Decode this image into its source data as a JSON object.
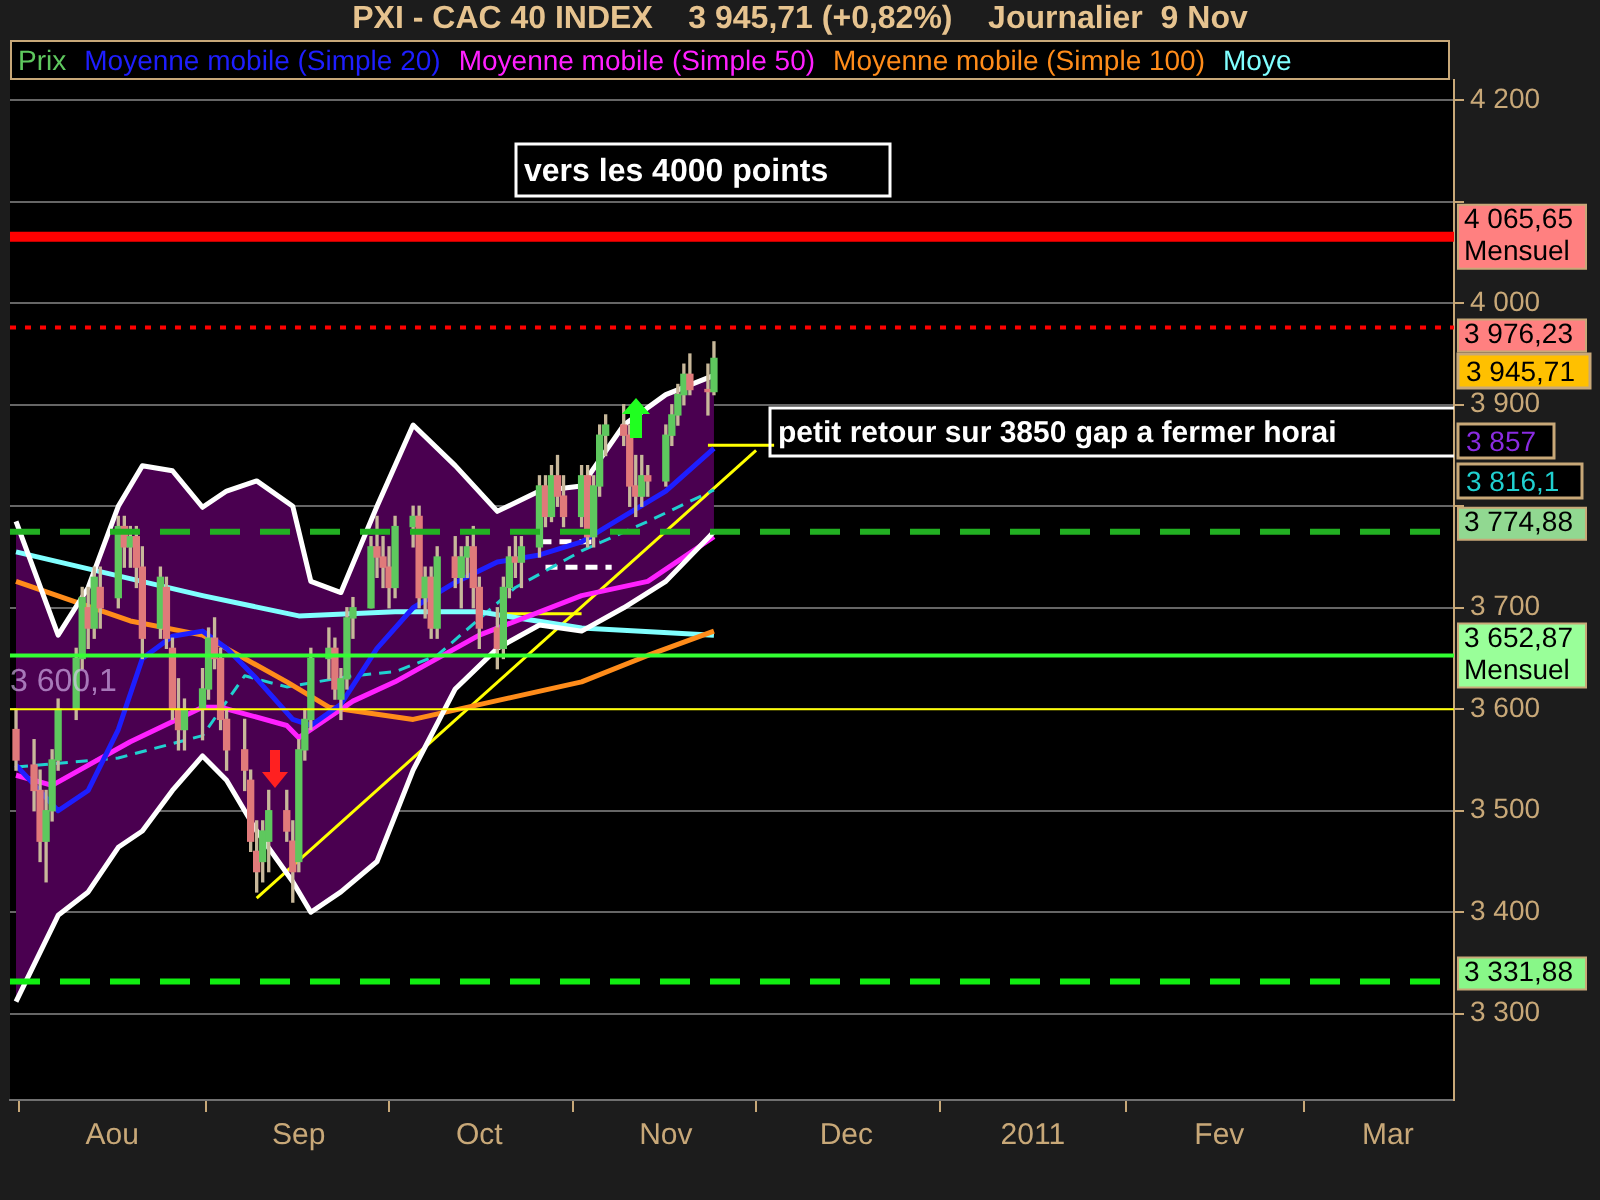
{
  "chart_data": {
    "type": "candlestick",
    "title": "PXI - CAC 40 INDEX    3 945,71 (+0,82%)    Journalier  9 Nov",
    "xlim": [
      "2010-07-15",
      "2011-03-12"
    ],
    "xticks": [
      {
        "value": "2010-08-01",
        "label": "Aou"
      },
      {
        "value": "2010-09-01",
        "label": "Sep"
      },
      {
        "value": "2010-10-01",
        "label": "Oct"
      },
      {
        "value": "2010-11-01",
        "label": "Nov"
      },
      {
        "value": "2010-12-01",
        "label": "Dec"
      },
      {
        "value": "2011-01-01",
        "label": "2011"
      },
      {
        "value": "2011-02-01",
        "label": "Fev"
      },
      {
        "value": "2011-03-01",
        "label": "Mar"
      }
    ],
    "ylim": [
      3215,
      4220
    ],
    "yticks": [
      {
        "value": 3300,
        "label": "3 300"
      },
      {
        "value": 3400,
        "label": "3 400"
      },
      {
        "value": 3500,
        "label": "3 500"
      },
      {
        "value": 3600,
        "label": "3 600"
      },
      {
        "value": 3700,
        "label": "3 700"
      },
      {
        "value": 3800,
        "label": null
      },
      {
        "value": 3900,
        "label": "3 900"
      },
      {
        "value": 4000,
        "label": "4 000"
      },
      {
        "value": 4100,
        "label": null
      },
      {
        "value": 4200,
        "label": "4 200"
      }
    ],
    "grid": "y",
    "legend": "top left",
    "series": [
      {
        "name": "Prix",
        "x": [
          "2010-07-16",
          "2010-07-19",
          "2010-07-20",
          "2010-07-21",
          "2010-07-22",
          "2010-07-23",
          "2010-07-26",
          "2010-07-27",
          "2010-07-28",
          "2010-07-29",
          "2010-07-30",
          "2010-08-02",
          "2010-08-03",
          "2010-08-04",
          "2010-08-05",
          "2010-08-06",
          "2010-08-09",
          "2010-08-10",
          "2010-08-11",
          "2010-08-12",
          "2010-08-13",
          "2010-08-16",
          "2010-08-17",
          "2010-08-18",
          "2010-08-19",
          "2010-08-20",
          "2010-08-23",
          "2010-08-24",
          "2010-08-25",
          "2010-08-26",
          "2010-08-27",
          "2010-08-30",
          "2010-08-31",
          "2010-09-01",
          "2010-09-02",
          "2010-09-03",
          "2010-09-06",
          "2010-09-07",
          "2010-09-08",
          "2010-09-09",
          "2010-09-10",
          "2010-09-13",
          "2010-09-14",
          "2010-09-15",
          "2010-09-16",
          "2010-09-17",
          "2010-09-20",
          "2010-09-21",
          "2010-09-22",
          "2010-09-23",
          "2010-09-24",
          "2010-09-27",
          "2010-09-28",
          "2010-09-29",
          "2010-09-30",
          "2010-10-01",
          "2010-10-04",
          "2010-10-05",
          "2010-10-06",
          "2010-10-07",
          "2010-10-08",
          "2010-10-11",
          "2010-10-12",
          "2010-10-13",
          "2010-10-14",
          "2010-10-15",
          "2010-10-18",
          "2010-10-19",
          "2010-10-20",
          "2010-10-21",
          "2010-10-22",
          "2010-10-25",
          "2010-10-26",
          "2010-10-27",
          "2010-10-28",
          "2010-10-29",
          "2010-11-01",
          "2010-11-02",
          "2010-11-03",
          "2010-11-04",
          "2010-11-05",
          "2010-11-08",
          "2010-11-09"
        ],
        "ohlc": [
          [
            3580,
            3600,
            3540,
            3550
          ],
          [
            3545,
            3570,
            3500,
            3520
          ],
          [
            3520,
            3540,
            3450,
            3470
          ],
          [
            3470,
            3520,
            3430,
            3500
          ],
          [
            3500,
            3560,
            3490,
            3550
          ],
          [
            3550,
            3610,
            3540,
            3600
          ],
          [
            3600,
            3660,
            3590,
            3650
          ],
          [
            3650,
            3720,
            3640,
            3710
          ],
          [
            3700,
            3720,
            3660,
            3680
          ],
          [
            3680,
            3740,
            3670,
            3730
          ],
          [
            3720,
            3740,
            3680,
            3700
          ],
          [
            3710,
            3790,
            3700,
            3780
          ],
          [
            3780,
            3790,
            3740,
            3760
          ],
          [
            3760,
            3780,
            3740,
            3770
          ],
          [
            3770,
            3780,
            3720,
            3740
          ],
          [
            3740,
            3760,
            3650,
            3670
          ],
          [
            3680,
            3740,
            3670,
            3730
          ],
          [
            3720,
            3730,
            3660,
            3670
          ],
          [
            3660,
            3670,
            3590,
            3600
          ],
          [
            3600,
            3630,
            3560,
            3580
          ],
          [
            3580,
            3610,
            3560,
            3600
          ],
          [
            3600,
            3640,
            3570,
            3620
          ],
          [
            3620,
            3680,
            3610,
            3670
          ],
          [
            3670,
            3690,
            3640,
            3650
          ],
          [
            3650,
            3660,
            3580,
            3590
          ],
          [
            3590,
            3600,
            3540,
            3560
          ],
          [
            3560,
            3590,
            3520,
            3540
          ],
          [
            3530,
            3540,
            3460,
            3470
          ],
          [
            3460,
            3490,
            3420,
            3440
          ],
          [
            3450,
            3490,
            3430,
            3480
          ],
          [
            3470,
            3520,
            3440,
            3500
          ],
          [
            3500,
            3520,
            3470,
            3480
          ],
          [
            3470,
            3490,
            3410,
            3440
          ],
          [
            3450,
            3570,
            3440,
            3560
          ],
          [
            3560,
            3600,
            3550,
            3590
          ],
          [
            3590,
            3660,
            3580,
            3650
          ],
          [
            3650,
            3680,
            3630,
            3660
          ],
          [
            3660,
            3670,
            3610,
            3620
          ],
          [
            3610,
            3640,
            3590,
            3630
          ],
          [
            3630,
            3700,
            3620,
            3690
          ],
          [
            3690,
            3710,
            3670,
            3700
          ],
          [
            3700,
            3770,
            3700,
            3760
          ],
          [
            3760,
            3790,
            3730,
            3750
          ],
          [
            3750,
            3770,
            3720,
            3740
          ],
          [
            3740,
            3760,
            3700,
            3720
          ],
          [
            3720,
            3790,
            3710,
            3780
          ],
          [
            3780,
            3800,
            3760,
            3790
          ],
          [
            3790,
            3800,
            3700,
            3710
          ],
          [
            3710,
            3740,
            3690,
            3730
          ],
          [
            3730,
            3740,
            3670,
            3680
          ],
          [
            3680,
            3760,
            3670,
            3750
          ],
          [
            3750,
            3770,
            3720,
            3730
          ],
          [
            3730,
            3760,
            3700,
            3750
          ],
          [
            3750,
            3770,
            3730,
            3760
          ],
          [
            3760,
            3780,
            3700,
            3720
          ],
          [
            3720,
            3730,
            3660,
            3680
          ],
          [
            3680,
            3700,
            3640,
            3660
          ],
          [
            3660,
            3730,
            3650,
            3720
          ],
          [
            3720,
            3760,
            3710,
            3750
          ],
          [
            3750,
            3770,
            3730,
            3745
          ],
          [
            3745,
            3770,
            3720,
            3760
          ],
          [
            3760,
            3830,
            3750,
            3820
          ],
          [
            3820,
            3830,
            3780,
            3790
          ],
          [
            3790,
            3840,
            3785,
            3830
          ],
          [
            3830,
            3850,
            3800,
            3810
          ],
          [
            3810,
            3830,
            3780,
            3790
          ],
          [
            3790,
            3840,
            3780,
            3830
          ],
          [
            3830,
            3840,
            3760,
            3770
          ],
          [
            3770,
            3830,
            3760,
            3820
          ],
          [
            3820,
            3880,
            3810,
            3870
          ],
          [
            3870,
            3890,
            3850,
            3880
          ],
          [
            3880,
            3900,
            3860,
            3870
          ],
          [
            3870,
            3880,
            3800,
            3820
          ],
          [
            3820,
            3850,
            3790,
            3810
          ],
          [
            3810,
            3850,
            3800,
            3830
          ],
          [
            3830,
            3840,
            3810,
            3825
          ],
          [
            3825,
            3880,
            3820,
            3870
          ],
          [
            3870,
            3900,
            3860,
            3890
          ],
          [
            3890,
            3920,
            3880,
            3910
          ],
          [
            3910,
            3940,
            3900,
            3930
          ],
          [
            3930,
            3950,
            3910,
            3915
          ],
          [
            3915,
            3940,
            3890,
            3913
          ],
          [
            3913,
            3962,
            3910,
            3945.71
          ]
        ],
        "colors": [
          "#e07a7a",
          "#e07a7a",
          "#e07a7a",
          "#5ec85e",
          "#5ec85e",
          "#5ec85e",
          "#5ec85e",
          "#5ec85e",
          "#e07a7a",
          "#5ec85e",
          "#e07a7a",
          "#5ec85e",
          "#e07a7a",
          "#5ec85e",
          "#e07a7a",
          "#e07a7a",
          "#5ec85e",
          "#e07a7a",
          "#e07a7a",
          "#e07a7a",
          "#5ec85e",
          "#5ec85e",
          "#5ec85e",
          "#e07a7a",
          "#e07a7a",
          "#e07a7a",
          "#e07a7a",
          "#e07a7a",
          "#e07a7a",
          "#5ec85e",
          "#5ec85e",
          "#e07a7a",
          "#e07a7a",
          "#5ec85e",
          "#5ec85e",
          "#5ec85e",
          "#5ec85e",
          "#e07a7a",
          "#5ec85e",
          "#5ec85e",
          "#5ec85e",
          "#5ec85e",
          "#e07a7a",
          "#e07a7a",
          "#e07a7a",
          "#5ec85e",
          "#5ec85e",
          "#e07a7a",
          "#5ec85e",
          "#e07a7a",
          "#5ec85e",
          "#e07a7a",
          "#5ec85e",
          "#5ec85e",
          "#e07a7a",
          "#e07a7a",
          "#e07a7a",
          "#5ec85e",
          "#5ec85e",
          "#e07a7a",
          "#5ec85e",
          "#5ec85e",
          "#e07a7a",
          "#5ec85e",
          "#e07a7a",
          "#e07a7a",
          "#5ec85e",
          "#e07a7a",
          "#5ec85e",
          "#5ec85e",
          "#5ec85e",
          "#e07a7a",
          "#e07a7a",
          "#e07a7a",
          "#5ec85e",
          "#e07a7a",
          "#5ec85e",
          "#5ec85e",
          "#5ec85e",
          "#5ec85e",
          "#e07a7a",
          "#e07a7a",
          "#5ec85e"
        ]
      },
      {
        "name": "Moyenne mobile (Simple 20)",
        "type": "line",
        "color": "#1e1eff",
        "x": [
          "2010-07-16",
          "2010-07-23",
          "2010-07-28",
          "2010-08-02",
          "2010-08-06",
          "2010-08-11",
          "2010-08-16",
          "2010-08-20",
          "2010-08-25",
          "2010-08-31",
          "2010-09-03",
          "2010-09-08",
          "2010-09-14",
          "2010-09-20",
          "2010-09-27",
          "2010-10-04",
          "2010-10-11",
          "2010-10-18",
          "2010-10-25",
          "2010-11-01",
          "2010-11-09"
        ],
        "values": [
          3545,
          3500,
          3520,
          3580,
          3650,
          3672,
          3677,
          3660,
          3630,
          3590,
          3584,
          3605,
          3660,
          3700,
          3725,
          3745,
          3752,
          3765,
          3790,
          3815,
          3857
        ],
        "upper": [
          3785,
          3673,
          3720,
          3800,
          3840,
          3835,
          3799,
          3815,
          3825,
          3800,
          3726,
          3715,
          3800,
          3880,
          3840,
          3795,
          3815,
          3820,
          3880,
          3910,
          3929
        ],
        "lower": [
          3312,
          3397,
          3420,
          3464,
          3480,
          3520,
          3554,
          3530,
          3480,
          3430,
          3400,
          3420,
          3450,
          3540,
          3620,
          3660,
          3683,
          3677,
          3700,
          3726,
          3775
        ]
      },
      {
        "type": "line",
        "color": "#ffffff",
        "x": [
          "2010-07-16",
          "2010-07-23",
          "2010-07-28",
          "2010-08-02",
          "2010-08-06",
          "2010-08-11",
          "2010-08-16",
          "2010-08-20",
          "2010-08-25",
          "2010-08-31",
          "2010-09-03",
          "2010-09-08",
          "2010-09-14",
          "2010-09-20",
          "2010-09-27",
          "2010-10-04",
          "2010-10-11",
          "2010-10-18",
          "2010-10-25",
          "2010-11-01",
          "2010-11-09"
        ],
        "values": [
          3785,
          3673,
          3720,
          3800,
          3840,
          3835,
          3799,
          3815,
          3825,
          3800,
          3726,
          3715,
          3800,
          3880,
          3840,
          3795,
          3815,
          3820,
          3880,
          3910,
          3929
        ]
      },
      {
        "type": "line",
        "color": "#ffffff",
        "x": [
          "2010-07-16",
          "2010-07-23",
          "2010-07-28",
          "2010-08-02",
          "2010-08-06",
          "2010-08-11",
          "2010-08-16",
          "2010-08-20",
          "2010-08-25",
          "2010-08-31",
          "2010-09-03",
          "2010-09-08",
          "2010-09-14",
          "2010-09-20",
          "2010-09-27",
          "2010-10-04",
          "2010-10-11",
          "2010-10-18",
          "2010-10-25",
          "2010-11-01",
          "2010-11-09"
        ],
        "values": [
          3312,
          3397,
          3420,
          3464,
          3480,
          3520,
          3554,
          3530,
          3480,
          3430,
          3400,
          3420,
          3450,
          3540,
          3620,
          3660,
          3683,
          3677,
          3700,
          3726,
          3775
        ]
      },
      {
        "name": "Moyenne mobile (Simple 50)",
        "type": "line",
        "color": "#ff20ff",
        "x": [
          "2010-07-16",
          "2010-07-22",
          "2010-08-04",
          "2010-08-16",
          "2010-08-19",
          "2010-08-30",
          "2010-09-01",
          "2010-09-10",
          "2010-09-17",
          "2010-10-01",
          "2010-10-18",
          "2010-10-29",
          "2010-11-09"
        ],
        "values": [
          3535,
          3525,
          3568,
          3602,
          3602,
          3584,
          3572,
          3608,
          3627,
          3673,
          3712,
          3726,
          3770
        ]
      },
      {
        "name": "Moyenne mobile (Simple 100)",
        "type": "line",
        "color": "#ff8c1a",
        "x": [
          "2010-07-16",
          "2010-08-04",
          "2010-08-16",
          "2010-08-30",
          "2010-09-06",
          "2010-09-20",
          "2010-10-18",
          "2010-10-29",
          "2010-11-09"
        ],
        "values": [
          3726,
          3687,
          3673,
          3627,
          3602,
          3590,
          3627,
          3653,
          3677
        ]
      },
      {
        "name": "Moye",
        "type": "line",
        "color": "#80ffff",
        "x": [
          "2010-07-16",
          "2010-08-16",
          "2010-09-01",
          "2010-09-17",
          "2010-10-01",
          "2010-10-18",
          "2010-11-09"
        ],
        "values": [
          3755,
          3712,
          3692,
          3696,
          3696,
          3680,
          3673
        ]
      },
      {
        "type": "line",
        "color": "#20d0d0",
        "line_style": "dashed",
        "x": [
          "2010-07-16",
          "2010-08-02",
          "2010-08-16",
          "2010-08-23",
          "2010-08-30",
          "2010-09-10",
          "2010-09-17",
          "2010-09-24",
          "2010-10-07",
          "2010-10-18",
          "2010-10-29",
          "2010-11-09"
        ],
        "values": [
          3543,
          3552,
          3574,
          3633,
          3622,
          3633,
          3637,
          3653,
          3720,
          3756,
          3785,
          3816.1
        ]
      },
      {
        "type": "line",
        "color": "#ffff00",
        "x": [
          "2010-08-25",
          "2010-11-16"
        ],
        "values": [
          3414,
          3855
        ]
      },
      {
        "type": "line",
        "color": "#ffff00",
        "x": [
          "2010-11-08",
          "2010-11-19"
        ],
        "values": [
          3860,
          3860
        ]
      },
      {
        "type": "line",
        "color": "#ffff00",
        "x": [
          "2010-10-05",
          "2010-10-18"
        ],
        "values": [
          3694,
          3694
        ]
      },
      {
        "type": "line",
        "color": "#ffffff",
        "line_style": "dashed",
        "x": [
          "2010-10-11",
          "2010-10-21"
        ],
        "values": [
          3765,
          3765
        ]
      },
      {
        "type": "line",
        "color": "#ffffff",
        "line_style": "dashed",
        "x": [
          "2010-10-12",
          "2010-10-23"
        ],
        "values": [
          3740,
          3740
        ]
      }
    ],
    "ref_lines": [
      {
        "axis": "y",
        "value": 4065.65,
        "label": "4 065,65\nMensuel",
        "color": "#ff0000"
      },
      {
        "axis": "y",
        "value": 3976.23,
        "label": "3 976,23",
        "color": "#ff0000",
        "line_style": "dotted"
      },
      {
        "axis": "y",
        "value": 3774.88,
        "label": "3 774,88",
        "color": "#22b022",
        "line_style": "dashed"
      },
      {
        "axis": "y",
        "value": 3652.87,
        "label": "3 652,87\nMensuel",
        "color": "#33ff33"
      },
      {
        "axis": "y",
        "value": 3600,
        "color": "#ffff00"
      },
      {
        "axis": "y",
        "value": 3331.88,
        "label": "3 331,88",
        "color": "#11ee11",
        "line_style": "dashed"
      }
    ],
    "annotations": [
      "vers les 4000 points",
      "petit retour sur 3850 gap a fermer horai",
      "3 945,71",
      "3 857",
      "3 816,1",
      "3 600,1"
    ]
  }
}
